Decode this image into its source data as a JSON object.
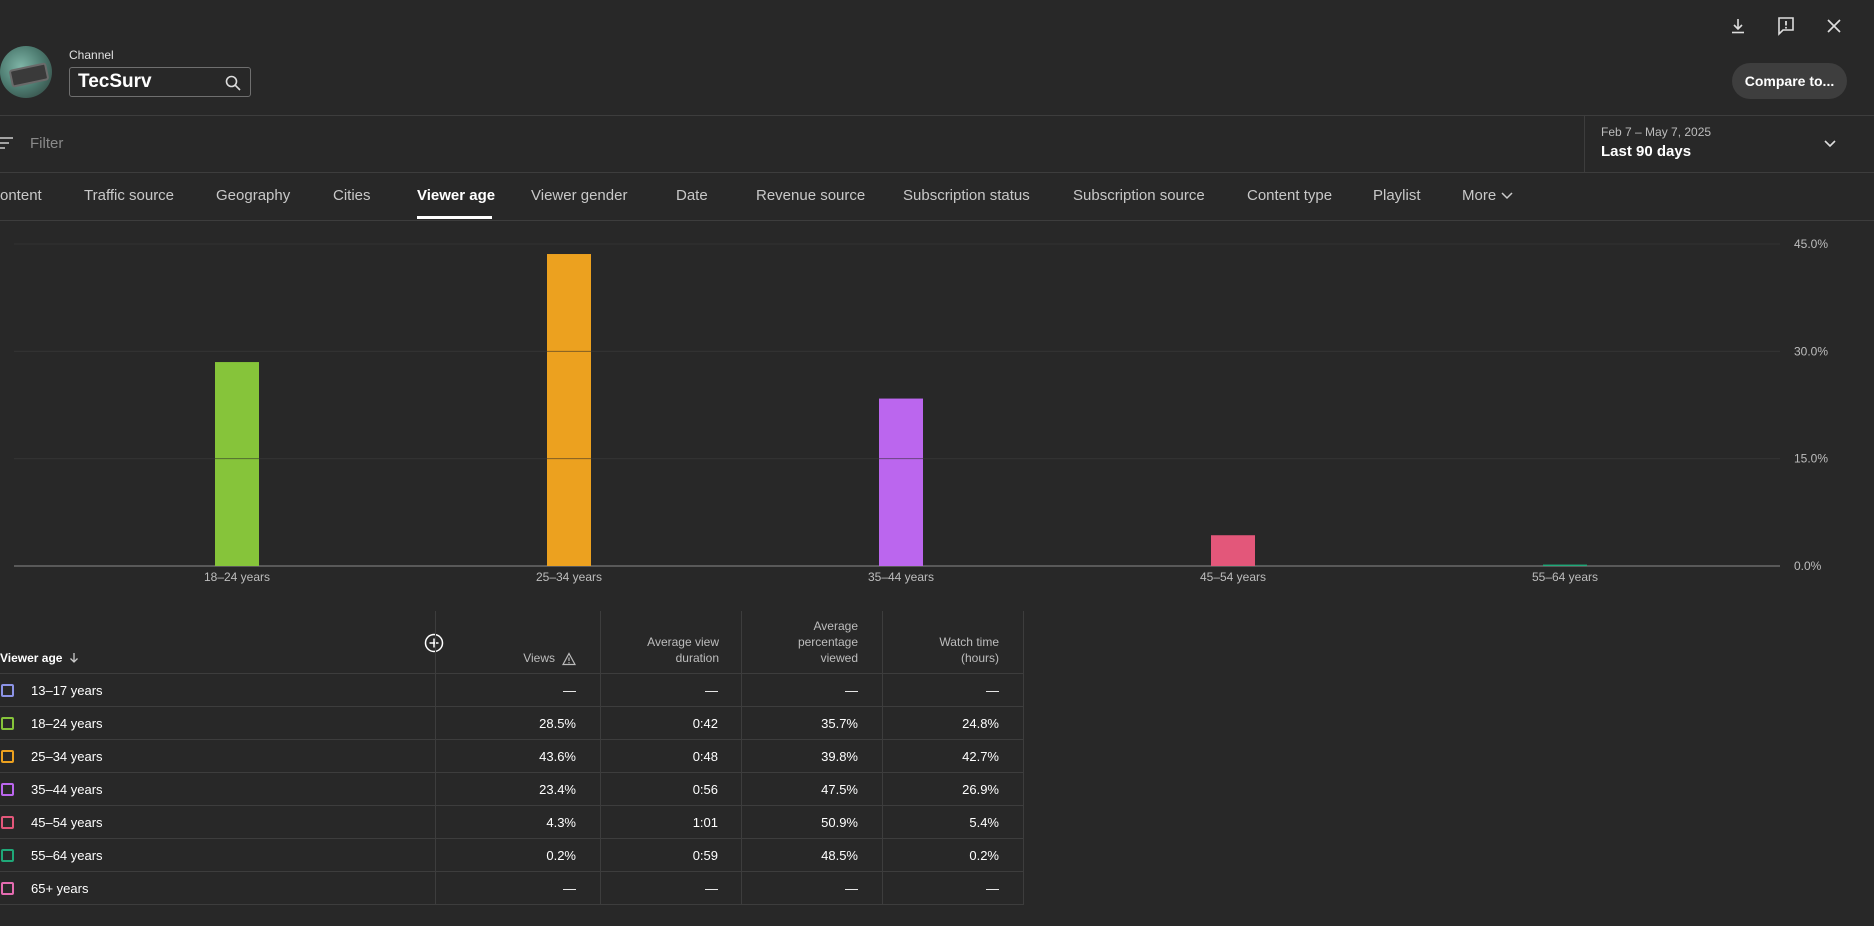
{
  "header": {
    "channel_label": "Channel",
    "channel_name": "TecSurv",
    "compare_label": "Compare to..."
  },
  "icons": {
    "download": "download-icon",
    "feedback": "feedback-icon",
    "close": "close-icon",
    "search": "search-icon",
    "filter": "filter-icon",
    "chevron": "chevron-down-icon"
  },
  "filter": {
    "placeholder": "Filter"
  },
  "date": {
    "range": "Feb 7 – May 7, 2025",
    "label": "Last 90 days"
  },
  "tabs": [
    {
      "label": "ontent",
      "active": false
    },
    {
      "label": "Traffic source",
      "active": false
    },
    {
      "label": "Geography",
      "active": false
    },
    {
      "label": "Cities",
      "active": false
    },
    {
      "label": "Viewer age",
      "active": true
    },
    {
      "label": "Viewer gender",
      "active": false
    },
    {
      "label": "Date",
      "active": false
    },
    {
      "label": "Revenue source",
      "active": false
    },
    {
      "label": "Subscription status",
      "active": false
    },
    {
      "label": "Subscription source",
      "active": false
    },
    {
      "label": "Content type",
      "active": false
    },
    {
      "label": "Playlist",
      "active": false
    },
    {
      "label": "More",
      "active": false
    }
  ],
  "chart_data": {
    "type": "bar",
    "categories": [
      "18–24 years",
      "25–34 years",
      "35–44 years",
      "45–54 years",
      "55–64 years"
    ],
    "values": [
      28.5,
      43.6,
      23.4,
      4.3,
      0.2
    ],
    "colors": [
      "#86c43a",
      "#eca11f",
      "#bb66ee",
      "#e3577a",
      "#1fa878"
    ],
    "ylim": [
      0,
      45
    ],
    "yticks": [
      0,
      15,
      30,
      45
    ],
    "ytick_labels": [
      "0.0%",
      "15.0%",
      "30.0%",
      "45.0%"
    ],
    "grid": true
  },
  "table": {
    "headers": {
      "age": "Viewer age",
      "views": "Views",
      "avg_duration": [
        "Average view",
        "duration"
      ],
      "avg_pct": [
        "Average",
        "percentage",
        "viewed"
      ],
      "watch_time": [
        "Watch time",
        "(hours)"
      ]
    },
    "rows": [
      {
        "age": "13–17 years",
        "color": "#8c93e6",
        "views": "—",
        "duration": "—",
        "pct": "—",
        "watch": "—"
      },
      {
        "age": "18–24 years",
        "color": "#86c43a",
        "views": "28.5%",
        "duration": "0:42",
        "pct": "35.7%",
        "watch": "24.8%"
      },
      {
        "age": "25–34 years",
        "color": "#eca11f",
        "views": "43.6%",
        "duration": "0:48",
        "pct": "39.8%",
        "watch": "42.7%"
      },
      {
        "age": "35–44 years",
        "color": "#bb66ee",
        "views": "23.4%",
        "duration": "0:56",
        "pct": "47.5%",
        "watch": "26.9%"
      },
      {
        "age": "45–54 years",
        "color": "#e3577a",
        "views": "4.3%",
        "duration": "1:01",
        "pct": "50.9%",
        "watch": "5.4%"
      },
      {
        "age": "55–64 years",
        "color": "#1fa878",
        "views": "0.2%",
        "duration": "0:59",
        "pct": "48.5%",
        "watch": "0.2%"
      },
      {
        "age": "65+ years",
        "color": "#e46bb0",
        "views": "—",
        "duration": "—",
        "pct": "—",
        "watch": "—"
      }
    ]
  }
}
